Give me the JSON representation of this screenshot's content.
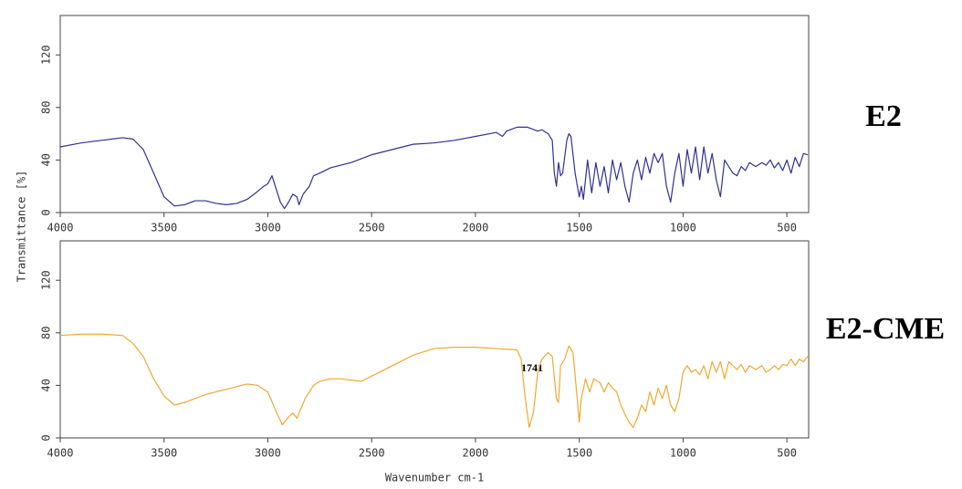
{
  "chart_data": [
    {
      "type": "line",
      "label": "E2",
      "ylabel": "Transmittance [%]",
      "color": "#2e3192",
      "xlim": [
        4000,
        395
      ],
      "ylim": [
        0,
        150
      ],
      "xticks": [
        4000,
        3500,
        3000,
        2500,
        2000,
        1500,
        1000,
        500
      ],
      "yticks": [
        0,
        40,
        80,
        120
      ],
      "x": [
        4000,
        3900,
        3800,
        3700,
        3650,
        3600,
        3550,
        3500,
        3450,
        3400,
        3350,
        3300,
        3250,
        3200,
        3150,
        3100,
        3050,
        3020,
        3000,
        2980,
        2960,
        2940,
        2920,
        2900,
        2880,
        2860,
        2850,
        2830,
        2800,
        2780,
        2750,
        2700,
        2600,
        2500,
        2400,
        2300,
        2200,
        2100,
        2000,
        1900,
        1870,
        1850,
        1800,
        1750,
        1700,
        1680,
        1650,
        1630,
        1620,
        1610,
        1600,
        1590,
        1580,
        1560,
        1550,
        1540,
        1520,
        1500,
        1490,
        1480,
        1460,
        1440,
        1420,
        1400,
        1380,
        1360,
        1340,
        1320,
        1300,
        1280,
        1260,
        1240,
        1220,
        1200,
        1180,
        1160,
        1140,
        1120,
        1100,
        1080,
        1060,
        1040,
        1020,
        1000,
        980,
        960,
        940,
        920,
        900,
        880,
        860,
        840,
        820,
        800,
        780,
        760,
        740,
        720,
        700,
        680,
        650,
        620,
        600,
        580,
        560,
        540,
        520,
        500,
        480,
        460,
        440,
        420,
        400
      ],
      "values": [
        50,
        53,
        55,
        57,
        56,
        48,
        30,
        12,
        5,
        6,
        9,
        9,
        7,
        6,
        7,
        10,
        16,
        20,
        22,
        28,
        18,
        8,
        3,
        8,
        14,
        12,
        6,
        14,
        20,
        28,
        30,
        34,
        38,
        44,
        48,
        52,
        53,
        55,
        58,
        61,
        58,
        62,
        65,
        65,
        62,
        63,
        60,
        55,
        30,
        20,
        38,
        28,
        30,
        55,
        60,
        58,
        30,
        12,
        20,
        10,
        40,
        15,
        38,
        20,
        35,
        15,
        40,
        25,
        38,
        20,
        8,
        30,
        40,
        25,
        42,
        30,
        45,
        38,
        45,
        20,
        8,
        30,
        45,
        20,
        48,
        30,
        50,
        25,
        50,
        30,
        45,
        25,
        12,
        40,
        35,
        30,
        28,
        35,
        32,
        38,
        35,
        38,
        36,
        40,
        34,
        38,
        32,
        40,
        30,
        42,
        35,
        45,
        44
      ]
    },
    {
      "type": "line",
      "label": "E2-CME",
      "xlabel": "Wavenumber cm-1",
      "annotation": "1741",
      "color": "#f0a830",
      "xlim": [
        4000,
        395
      ],
      "ylim": [
        0,
        150
      ],
      "xticks": [
        4000,
        3500,
        3000,
        2500,
        2000,
        1500,
        1000,
        500
      ],
      "yticks": [
        0,
        40,
        80,
        120
      ],
      "x": [
        4000,
        3900,
        3800,
        3700,
        3650,
        3600,
        3550,
        3500,
        3450,
        3400,
        3300,
        3200,
        3100,
        3050,
        3000,
        2960,
        2930,
        2900,
        2880,
        2860,
        2820,
        2780,
        2750,
        2700,
        2650,
        2600,
        2550,
        2500,
        2400,
        2300,
        2200,
        2100,
        2000,
        1900,
        1800,
        1780,
        1760,
        1741,
        1720,
        1700,
        1680,
        1650,
        1630,
        1610,
        1600,
        1590,
        1570,
        1550,
        1530,
        1510,
        1500,
        1490,
        1470,
        1450,
        1430,
        1400,
        1380,
        1360,
        1340,
        1320,
        1300,
        1280,
        1260,
        1240,
        1220,
        1200,
        1180,
        1160,
        1140,
        1120,
        1100,
        1080,
        1060,
        1040,
        1020,
        1000,
        980,
        960,
        940,
        920,
        900,
        880,
        860,
        840,
        820,
        800,
        780,
        760,
        740,
        720,
        700,
        680,
        650,
        620,
        600,
        580,
        560,
        540,
        520,
        500,
        480,
        460,
        440,
        420,
        400
      ],
      "values": [
        78,
        79,
        79,
        78,
        72,
        62,
        45,
        32,
        25,
        27,
        33,
        37,
        41,
        40,
        35,
        20,
        10,
        16,
        19,
        15,
        30,
        40,
        43,
        45,
        45,
        44,
        43,
        47,
        55,
        63,
        68,
        69,
        69,
        68,
        67,
        60,
        30,
        8,
        20,
        50,
        60,
        65,
        62,
        30,
        27,
        55,
        60,
        70,
        65,
        30,
        12,
        30,
        45,
        35,
        45,
        42,
        35,
        42,
        38,
        35,
        25,
        18,
        12,
        8,
        15,
        25,
        20,
        35,
        25,
        38,
        30,
        40,
        25,
        20,
        30,
        50,
        55,
        50,
        52,
        48,
        55,
        45,
        58,
        50,
        58,
        45,
        58,
        55,
        52,
        56,
        50,
        55,
        52,
        55,
        50,
        52,
        55,
        52,
        56,
        55,
        60,
        55,
        60,
        58,
        62
      ]
    }
  ]
}
